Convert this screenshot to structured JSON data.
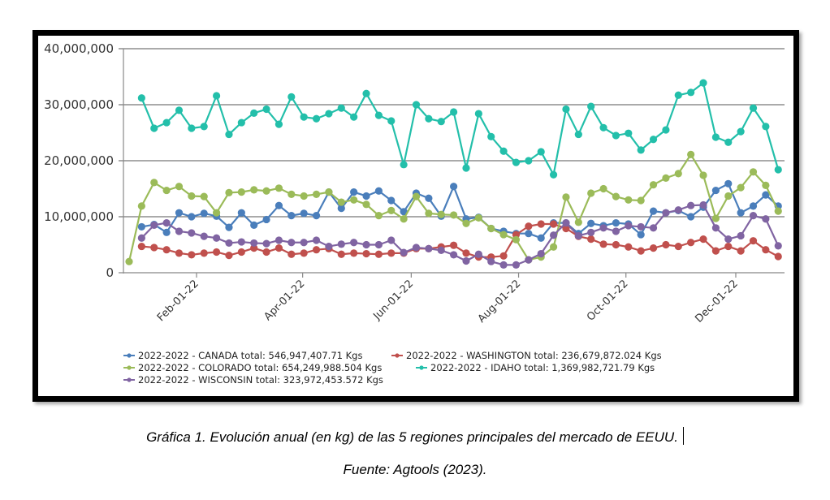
{
  "chart_data": {
    "type": "line",
    "title": "",
    "xlabel": "",
    "ylabel": "",
    "ylim": [
      0,
      40000000
    ],
    "yticks": [
      0,
      10000000,
      20000000,
      30000000,
      40000000
    ],
    "ytick_labels": [
      "0",
      "10,000,000",
      "20,000,000",
      "30,000,000",
      "40,000,000"
    ],
    "xtick_labels": [
      "Feb-01-22",
      "Apr-01-22",
      "Jun-01-22",
      "Aug-01-22",
      "Oct-01-22",
      "Dec-01-22"
    ],
    "xtick_week_index": [
      5.4,
      13.9,
      22.6,
      31.2,
      39.8,
      48.6
    ],
    "x_unit": "weekly points, index 0 = first week",
    "num_points": 53,
    "grid": "horizontal",
    "legend_position": "bottom",
    "series": [
      {
        "name": "2022-2022 - CANADA total: 546,947,407.71 Kgs",
        "color": "#4a7ebb",
        "start_index": 1,
        "values_millions": [
          8.2,
          8.6,
          7.2,
          10.7,
          10.0,
          10.6,
          10.1,
          8.1,
          10.7,
          8.5,
          9.5,
          12.0,
          10.2,
          10.6,
          10.2,
          14.4,
          11.5,
          14.4,
          13.7,
          14.6,
          12.9,
          10.9,
          14.2,
          13.3,
          10.1,
          15.4,
          9.6,
          9.9,
          7.9,
          7.4,
          7.0,
          7.0,
          6.2,
          8.9,
          8.9,
          7.0,
          8.8,
          8.4,
          8.9,
          8.7,
          6.8,
          11.0,
          10.7,
          11.1,
          10.0,
          11.7,
          14.7,
          15.9,
          10.7,
          11.9,
          13.9,
          11.9
        ]
      },
      {
        "name": "2022-2022 - WASHINGTON total: 236,679,872.024 Kgs",
        "color": "#c0504d",
        "start_index": 1,
        "values_millions": [
          4.7,
          4.5,
          4.1,
          3.5,
          3.2,
          3.5,
          3.7,
          3.1,
          3.7,
          4.4,
          3.7,
          4.4,
          3.3,
          3.5,
          4.1,
          4.3,
          3.3,
          3.5,
          3.4,
          3.3,
          3.5,
          3.5,
          4.3,
          4.3,
          4.6,
          4.9,
          3.5,
          2.8,
          2.8,
          3.0,
          6.8,
          8.3,
          8.7,
          8.7,
          7.9,
          6.5,
          6.0,
          5.1,
          5.0,
          4.6,
          3.9,
          4.4,
          5.0,
          4.7,
          5.4,
          6.0,
          3.9,
          4.7,
          3.9,
          5.7,
          4.1,
          2.9
        ]
      },
      {
        "name": "2022-2022 - COLORADO total: 654,249,988.504 Kgs",
        "color": "#9bbb59",
        "start_index": 0,
        "values_millions": [
          2.0,
          11.9,
          16.1,
          14.7,
          15.4,
          13.7,
          13.6,
          10.7,
          14.3,
          14.4,
          14.8,
          14.6,
          15.1,
          14.0,
          13.7,
          14.0,
          14.4,
          12.6,
          13.0,
          12.2,
          10.2,
          11.1,
          9.6,
          13.6,
          10.6,
          10.4,
          10.3,
          8.8,
          9.8,
          7.9,
          6.8,
          5.9,
          2.3,
          2.8,
          4.6,
          13.5,
          9.0,
          14.2,
          15.0,
          13.6,
          13.0,
          12.9,
          15.7,
          16.9,
          17.7,
          21.1,
          17.4,
          9.7,
          13.7,
          15.2,
          18.0,
          15.6,
          11.0
        ]
      },
      {
        "name": "2022-2022 - IDAHO total: 1,369,982,721.79 Kgs",
        "color": "#23bfaa",
        "start_index": 1,
        "values_millions": [
          31.2,
          25.8,
          26.8,
          29.0,
          25.8,
          26.1,
          31.6,
          24.7,
          26.8,
          28.5,
          29.2,
          26.5,
          31.4,
          27.8,
          27.5,
          28.4,
          29.4,
          27.8,
          32.0,
          28.1,
          27.1,
          19.3,
          30.0,
          27.5,
          27.0,
          28.7,
          18.7,
          28.4,
          24.3,
          21.7,
          19.7,
          20.0,
          21.6,
          17.5,
          29.2,
          24.7,
          29.7,
          25.9,
          24.5,
          24.9,
          21.9,
          23.8,
          25.5,
          31.7,
          32.2,
          33.9,
          24.2,
          23.3,
          25.2,
          29.4,
          26.1,
          18.4
        ]
      },
      {
        "name": "2022-2022 - WISCONSIN total: 323,972,453.572 Kgs",
        "color": "#8064a2",
        "start_index": 1,
        "values_millions": [
          6.2,
          8.5,
          8.9,
          7.4,
          7.1,
          6.5,
          6.2,
          5.3,
          5.5,
          5.3,
          5.2,
          5.8,
          5.4,
          5.4,
          5.8,
          4.7,
          5.1,
          5.4,
          5.0,
          5.0,
          5.8,
          3.6,
          4.5,
          4.3,
          4.0,
          3.2,
          2.1,
          3.3,
          2.0,
          1.4,
          1.4,
          2.3,
          3.4,
          6.7,
          8.9,
          6.6,
          7.2,
          8.0,
          7.4,
          8.4,
          8.2,
          8.0,
          10.7,
          11.2,
          12.0,
          12.1,
          8.0,
          6.0,
          6.6,
          10.2,
          9.6,
          4.8
        ]
      }
    ]
  },
  "caption": {
    "line1": "Gráfica 1. Evolución anual (en kg) de las 5 regiones principales del mercado de EEUU.",
    "line2": "Fuente: Agtools (2023)."
  }
}
